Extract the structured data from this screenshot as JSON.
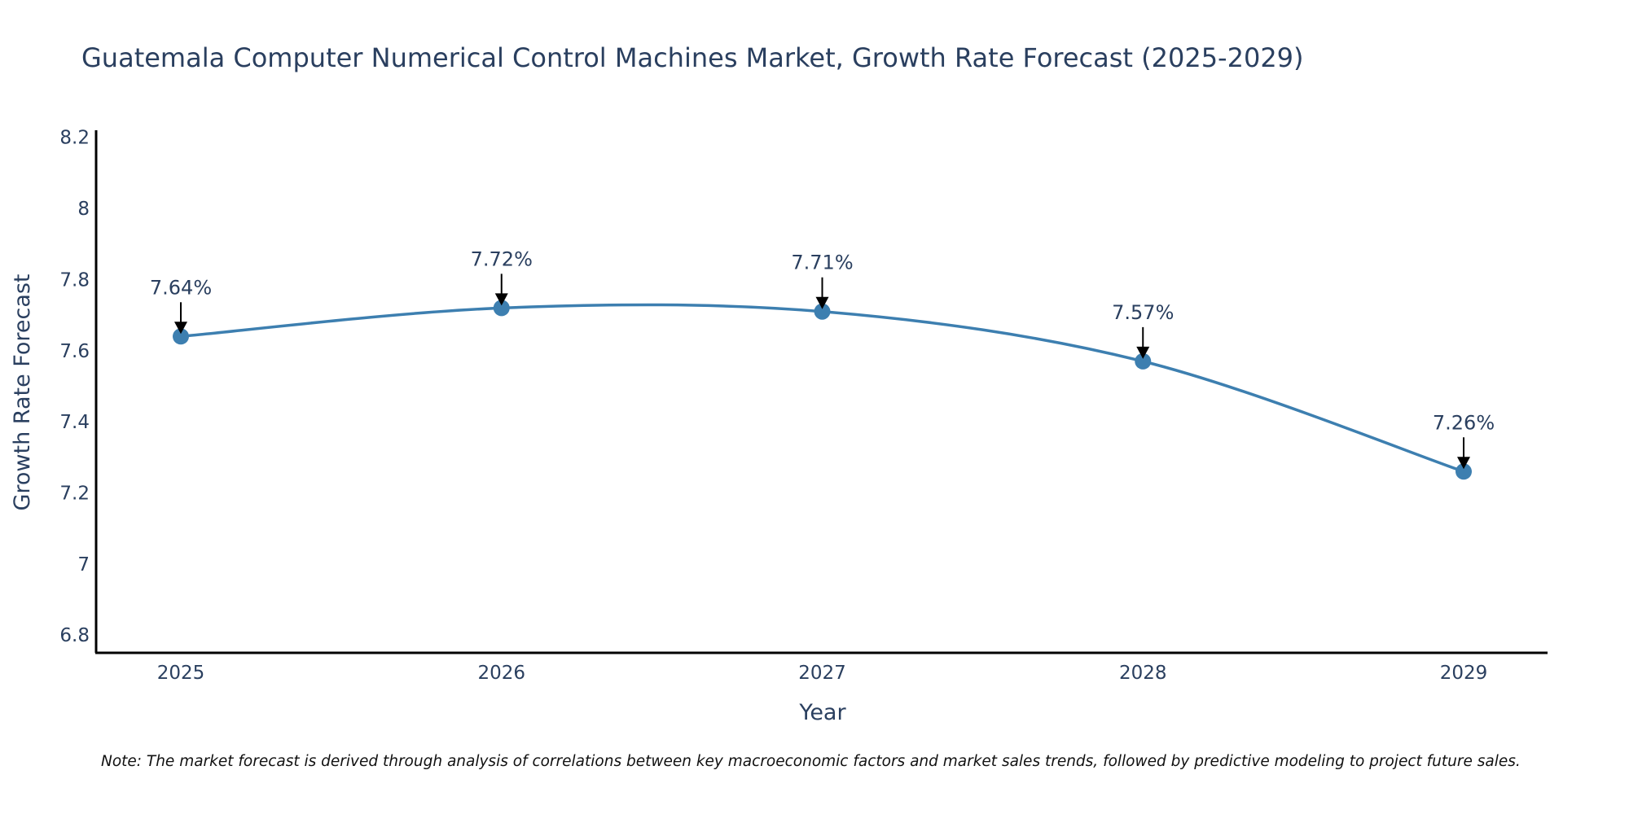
{
  "chart_data": {
    "type": "line",
    "title": "Guatemala Computer Numerical Control Machines Market, Growth Rate Forecast (2025-2029)",
    "xlabel": "Year",
    "ylabel": "Growth Rate Forecast",
    "categories": [
      "2025",
      "2026",
      "2027",
      "2028",
      "2029"
    ],
    "series": [
      {
        "name": "Growth Rate Forecast",
        "values": [
          7.64,
          7.72,
          7.71,
          7.57,
          7.26
        ],
        "labels": [
          "7.64%",
          "7.72%",
          "7.71%",
          "7.57%",
          "7.26%"
        ],
        "color": "#3d7fb0",
        "line_shape": "spline"
      }
    ],
    "yticks": [
      "6.8",
      "7",
      "7.2",
      "7.4",
      "7.6",
      "7.8",
      "8",
      "8.2"
    ],
    "ytick_values": [
      6.8,
      7.0,
      7.2,
      7.4,
      7.6,
      7.8,
      8.0,
      8.2
    ],
    "ylim": [
      6.75,
      8.22
    ],
    "grid": false,
    "legend": "none",
    "annotation_style": "arrow"
  },
  "note": "Note: The market forecast is derived through analysis of correlations between key macroeconomic factors and market sales trends, followed by predictive modeling to project future sales."
}
